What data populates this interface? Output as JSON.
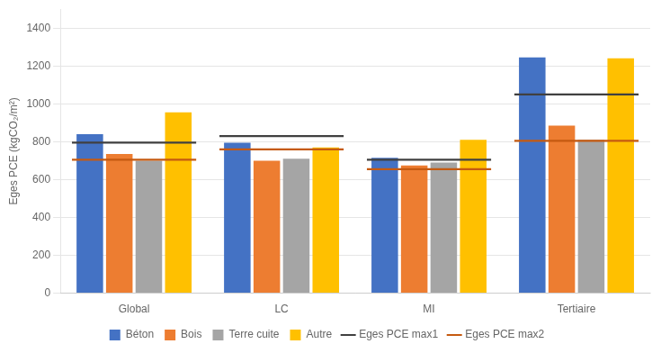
{
  "chart_data": {
    "type": "bar",
    "categories": [
      "Global",
      "LC",
      "MI",
      "Tertiaire"
    ],
    "series": [
      {
        "name": "Béton",
        "type": "bar",
        "color": "#4472C4",
        "values": [
          840,
          795,
          715,
          1245
        ]
      },
      {
        "name": "Bois",
        "type": "bar",
        "color": "#ED7D31",
        "values": [
          735,
          700,
          675,
          885
        ]
      },
      {
        "name": "Terre cuite",
        "type": "bar",
        "color": "#A5A5A5",
        "values": [
          700,
          710,
          690,
          810
        ]
      },
      {
        "name": "Autre",
        "type": "bar",
        "color": "#FFC000",
        "values": [
          955,
          770,
          810,
          1240
        ]
      },
      {
        "name": "Eges PCE max1",
        "type": "line",
        "color": "#404040",
        "values": [
          795,
          830,
          705,
          1050
        ]
      },
      {
        "name": "Eges PCE max2",
        "type": "line",
        "color": "#C55A11",
        "values": [
          705,
          760,
          655,
          805
        ]
      }
    ],
    "ylabel": "Eges PCE (kgCO₂/m²)",
    "ylim": [
      0,
      1500
    ],
    "yticks": [
      0,
      200,
      400,
      600,
      800,
      1000,
      1200,
      1400
    ],
    "grid": true,
    "legend": "bottom"
  }
}
